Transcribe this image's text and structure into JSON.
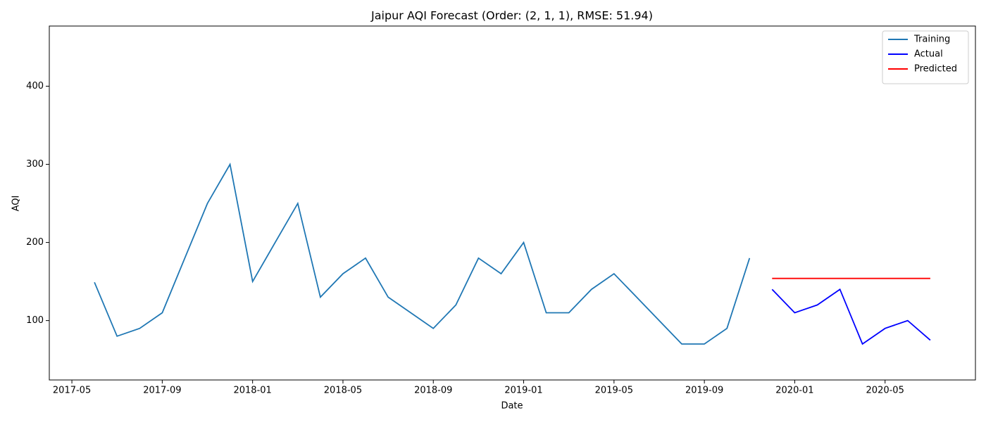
{
  "chart_data": {
    "type": "line",
    "title": "Jaipur AQI Forecast (Order: (2, 1, 1), RMSE: 51.94)",
    "x_label": "Date",
    "y_label": "AQI",
    "xlim": [
      "2017-04",
      "2020-09"
    ],
    "xticks": [
      "2017-05",
      "2017-09",
      "2018-01",
      "2018-05",
      "2018-09",
      "2019-01",
      "2019-05",
      "2019-09",
      "2020-01",
      "2020-05"
    ],
    "ylim": [
      24,
      477
    ],
    "yticks": [
      100,
      200,
      300,
      400
    ],
    "legend": "upper right",
    "grid": false,
    "series": [
      {
        "name": "Training",
        "color": "#1f77b4",
        "x": [
          "2017-06",
          "2017-07",
          "2017-08",
          "2017-09",
          "2017-10",
          "2017-11",
          "2017-12",
          "2018-01",
          "2018-02",
          "2018-03",
          "2018-04",
          "2018-05",
          "2018-06",
          "2018-07",
          "2018-08",
          "2018-09",
          "2018-10",
          "2018-11",
          "2018-12",
          "2019-01",
          "2019-02",
          "2019-03",
          "2019-04",
          "2019-05",
          "2019-06",
          "2019-07",
          "2019-08",
          "2019-09",
          "2019-10",
          "2019-11"
        ],
        "values": [
          149,
          80,
          90,
          110,
          180,
          250,
          300,
          150,
          200,
          250,
          130,
          160,
          180,
          130,
          110,
          90,
          120,
          180,
          160,
          200,
          110,
          110,
          140,
          160,
          130,
          100,
          70,
          70,
          90,
          180
        ]
      },
      {
        "name": "Actual",
        "color": "#0000ff",
        "x": [
          "2019-12",
          "2020-01",
          "2020-02",
          "2020-03",
          "2020-04",
          "2020-05",
          "2020-06",
          "2020-07"
        ],
        "values": [
          140,
          110,
          120,
          140,
          70,
          90,
          100,
          75
        ]
      },
      {
        "name": "Predicted",
        "color": "#ff0000",
        "x": [
          "2019-12",
          "2020-07"
        ],
        "values": [
          154,
          154
        ]
      }
    ]
  }
}
